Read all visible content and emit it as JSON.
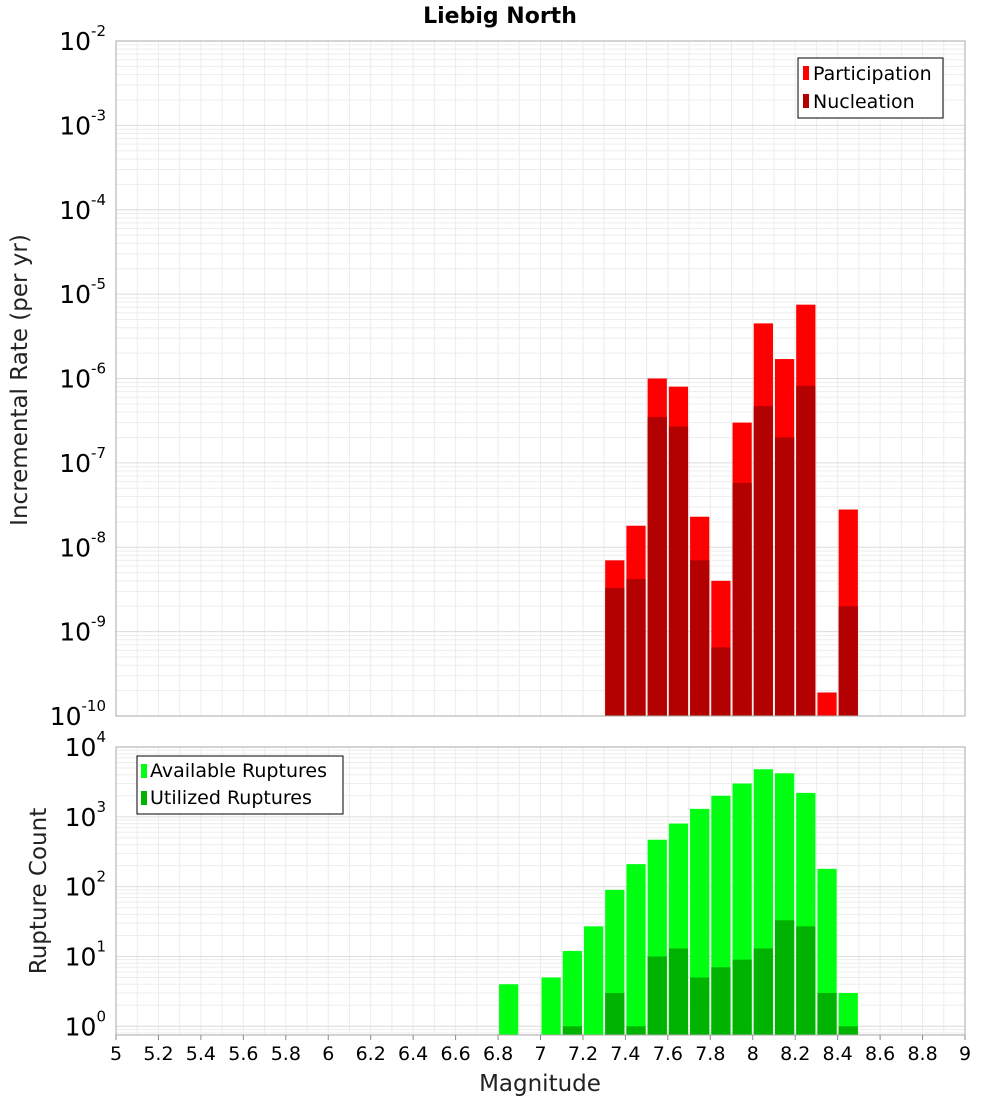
{
  "chart_data": [
    {
      "type": "bar",
      "title": "Liebig North",
      "ylabel": "Incremental Rate (per yr)",
      "xlabel": "",
      "xlim": [
        5,
        9
      ],
      "ylim": [
        1e-10,
        0.01
      ],
      "yscale": "log",
      "grid": true,
      "legend_position": "top-right",
      "bin_width": 0.1,
      "series": [
        {
          "name": "Participation",
          "color": "#ff0000",
          "x": [
            7.35,
            7.45,
            7.55,
            7.65,
            7.75,
            7.85,
            7.95,
            8.05,
            8.15,
            8.25,
            8.35,
            8.45
          ],
          "values": [
            7e-09,
            1.8e-08,
            1e-06,
            8e-07,
            2.3e-08,
            4e-09,
            3e-07,
            4.5e-06,
            1.7e-06,
            7.5e-06,
            1.9e-10,
            2.8e-08
          ]
        },
        {
          "name": "Nucleation",
          "color": "#b30000",
          "x": [
            7.35,
            7.45,
            7.55,
            7.65,
            7.75,
            7.85,
            7.95,
            8.05,
            8.15,
            8.25,
            8.45
          ],
          "values": [
            3.3e-09,
            4.2e-09,
            3.5e-07,
            2.7e-07,
            7e-09,
            6.5e-10,
            5.8e-08,
            4.7e-07,
            2e-07,
            8.2e-07,
            2e-09
          ]
        }
      ],
      "y_ticks": [
        {
          "base": "10",
          "exp": "-2"
        },
        {
          "base": "10",
          "exp": "-3"
        },
        {
          "base": "10",
          "exp": "-4"
        },
        {
          "base": "10",
          "exp": "-5"
        },
        {
          "base": "10",
          "exp": "-6"
        },
        {
          "base": "10",
          "exp": "-7"
        },
        {
          "base": "10",
          "exp": "-8"
        },
        {
          "base": "10",
          "exp": "-9"
        },
        {
          "base": "10",
          "exp": "-10"
        }
      ]
    },
    {
      "type": "bar",
      "title": "",
      "ylabel": "Rupture Count",
      "xlabel": "Magnitude",
      "xlim": [
        5,
        9
      ],
      "ylim": [
        0.75,
        10000
      ],
      "yscale": "log",
      "grid": true,
      "legend_position": "top-left",
      "bin_width": 0.1,
      "series": [
        {
          "name": "Available Ruptures",
          "color": "#00ff11",
          "x": [
            6.85,
            7.05,
            7.15,
            7.25,
            7.35,
            7.45,
            7.55,
            7.65,
            7.75,
            7.85,
            7.95,
            8.05,
            8.15,
            8.25,
            8.35,
            8.45
          ],
          "values": [
            4,
            5,
            12,
            27,
            90,
            210,
            470,
            800,
            1300,
            2000,
            3000,
            4800,
            4200,
            2200,
            180,
            3
          ]
        },
        {
          "name": "Utilized Ruptures",
          "color": "#00b300",
          "x": [
            7.15,
            7.35,
            7.45,
            7.55,
            7.65,
            7.75,
            7.85,
            7.95,
            8.05,
            8.15,
            8.25,
            8.35,
            8.45
          ],
          "values": [
            1,
            3,
            1,
            10,
            13,
            5,
            7,
            9,
            13,
            33,
            27,
            3,
            1
          ]
        }
      ],
      "y_ticks": [
        {
          "base": "10",
          "exp": "4"
        },
        {
          "base": "10",
          "exp": "3"
        },
        {
          "base": "10",
          "exp": "2"
        },
        {
          "base": "10",
          "exp": "1"
        },
        {
          "base": "10",
          "exp": "0"
        }
      ],
      "x_ticks": [
        "5",
        "5.2",
        "5.4",
        "5.6",
        "5.8",
        "6",
        "6.2",
        "6.4",
        "6.6",
        "6.8",
        "7",
        "7.2",
        "7.4",
        "7.6",
        "7.8",
        "8",
        "8.2",
        "8.4",
        "8.6",
        "8.8",
        "9"
      ]
    }
  ]
}
